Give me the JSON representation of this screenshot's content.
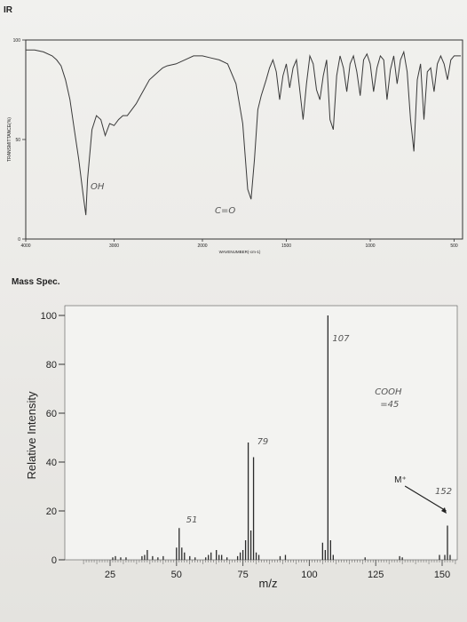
{
  "chart_data": [
    {
      "type": "line",
      "title": "IR",
      "ylabel": "TRANSMITTANCE(%)",
      "xlabel": "WAVENUMBER(-cm-1)",
      "y_ticks": [
        "100",
        "50",
        "0"
      ],
      "x_ticks": [
        "4000",
        "3000",
        "2000",
        "1500",
        "1000",
        "500"
      ],
      "xlim": [
        4000,
        450
      ],
      "ylim": [
        0,
        100
      ],
      "grid": false,
      "series": [
        {
          "x": [
            4000,
            3900,
            3800,
            3700,
            3650,
            3600,
            3550,
            3500,
            3450,
            3400,
            3350,
            3320,
            3300,
            3250,
            3200,
            3150,
            3100,
            3050,
            3000,
            2950,
            2900,
            2850,
            2800,
            2750,
            2700,
            2650,
            2600,
            2550,
            2500,
            2450,
            2400,
            2300,
            2200,
            2100,
            2000,
            1950,
            1900,
            1850,
            1800,
            1760,
            1730,
            1710,
            1690,
            1670,
            1650,
            1620,
            1600,
            1580,
            1560,
            1540,
            1520,
            1500,
            1480,
            1460,
            1440,
            1420,
            1400,
            1380,
            1360,
            1340,
            1320,
            1300,
            1280,
            1260,
            1240,
            1220,
            1200,
            1180,
            1160,
            1140,
            1120,
            1100,
            1080,
            1060,
            1040,
            1020,
            1000,
            980,
            960,
            940,
            920,
            900,
            880,
            860,
            840,
            820,
            800,
            780,
            760,
            740,
            720,
            700,
            680,
            660,
            640,
            620,
            600,
            580,
            560,
            540,
            520,
            500,
            480,
            460
          ],
          "y": [
            95,
            95,
            94,
            92,
            90,
            87,
            80,
            70,
            55,
            40,
            22,
            12,
            30,
            55,
            62,
            60,
            52,
            58,
            57,
            60,
            62,
            62,
            65,
            68,
            72,
            76,
            80,
            82,
            84,
            86,
            87,
            88,
            90,
            92,
            92,
            91,
            90,
            88,
            78,
            58,
            25,
            20,
            40,
            65,
            72,
            80,
            86,
            90,
            84,
            70,
            82,
            88,
            76,
            86,
            90,
            75,
            60,
            78,
            92,
            88,
            75,
            70,
            82,
            90,
            60,
            55,
            82,
            92,
            86,
            74,
            88,
            92,
            84,
            72,
            90,
            93,
            88,
            74,
            86,
            92,
            90,
            70,
            85,
            92,
            78,
            90,
            94,
            84,
            60,
            44,
            80,
            88,
            60,
            84,
            86,
            74,
            88,
            92,
            88,
            80,
            90,
            92,
            92,
            92
          ]
        }
      ],
      "annotations": [
        "OH",
        "C=O"
      ]
    },
    {
      "type": "bar",
      "title": "Mass Spec.",
      "xlabel": "m/z",
      "ylabel": "Relative Intensity",
      "x_ticks": [
        "25",
        "50",
        "75",
        "100",
        "125",
        "150"
      ],
      "y_ticks": [
        "0",
        "20",
        "40",
        "60",
        "80",
        "100"
      ],
      "xlim": [
        12,
        155
      ],
      "ylim": [
        0,
        100
      ],
      "grid": false,
      "x": [
        26,
        27,
        29,
        31,
        37,
        38,
        39,
        41,
        43,
        45,
        50,
        51,
        52,
        53,
        55,
        57,
        61,
        62,
        63,
        65,
        66,
        67,
        69,
        73,
        74,
        75,
        76,
        77,
        78,
        79,
        80,
        81,
        89,
        91,
        105,
        106,
        107,
        108,
        109,
        121,
        134,
        135,
        149,
        151,
        152,
        153
      ],
      "values": [
        1,
        1.5,
        1,
        1,
        1.5,
        2,
        4,
        1.5,
        1,
        1.5,
        5,
        13,
        5,
        3,
        1.5,
        1,
        1,
        2,
        3,
        4,
        2,
        2,
        1,
        1.5,
        3,
        4,
        8,
        48,
        12,
        42,
        3,
        2,
        1.5,
        2,
        7,
        4,
        100,
        8,
        2,
        1,
        1.5,
        1,
        2,
        2,
        14,
        2
      ],
      "annotations": {
        "peak_107": "107",
        "peak_79": "79",
        "peak_51": "51",
        "peak_152": "152",
        "cooh_1": "COOH",
        "cooh_2": "=45",
        "m_plus": "M⁺"
      }
    }
  ]
}
